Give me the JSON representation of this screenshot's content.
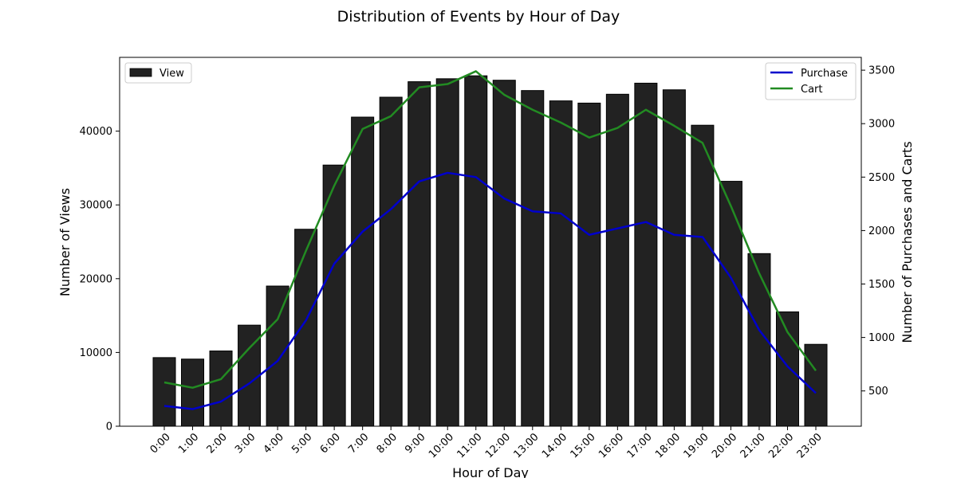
{
  "chart_data": {
    "type": "bar+line",
    "title": "Distribution of Events by Hour of Day",
    "xlabel": "Hour of Day",
    "ylabel_left": "Number of Views",
    "ylabel_right": "Number of Purchases and Carts",
    "categories": [
      "0:00",
      "1:00",
      "2:00",
      "3:00",
      "4:00",
      "5:00",
      "6:00",
      "7:00",
      "8:00",
      "9:00",
      "10:00",
      "11:00",
      "12:00",
      "13:00",
      "14:00",
      "15:00",
      "16:00",
      "17:00",
      "18:00",
      "19:00",
      "20:00",
      "21:00",
      "22:00",
      "23:00"
    ],
    "ylim_left": [
      0,
      50000
    ],
    "yticks_left": [
      0,
      10000,
      20000,
      30000,
      40000
    ],
    "ylim_right": [
      170,
      3620
    ],
    "yticks_right": [
      500,
      1000,
      1500,
      2000,
      2500,
      3000,
      3500
    ],
    "grid": false,
    "bar_series": [
      {
        "name": "View",
        "axis": "left",
        "color": "#222222",
        "values": [
          9300,
          9100,
          10200,
          13700,
          19000,
          26700,
          35400,
          41900,
          44600,
          46700,
          47100,
          47500,
          46900,
          45500,
          44100,
          43800,
          45000,
          46500,
          45600,
          40800,
          33200,
          23400,
          15500,
          11100
        ]
      }
    ],
    "line_series": [
      {
        "name": "Purchase",
        "axis": "right",
        "color": "#0000cc",
        "values": [
          360,
          330,
          400,
          570,
          780,
          1160,
          1690,
          1990,
          2200,
          2460,
          2540,
          2500,
          2300,
          2180,
          2160,
          1960,
          2020,
          2080,
          1960,
          1940,
          1560,
          1070,
          730,
          480
        ]
      },
      {
        "name": "Cart",
        "axis": "right",
        "color": "#228b22",
        "values": [
          580,
          530,
          610,
          900,
          1170,
          1810,
          2420,
          2950,
          3070,
          3340,
          3370,
          3490,
          3270,
          3130,
          3010,
          2870,
          2960,
          3130,
          2980,
          2820,
          2230,
          1600,
          1050,
          690
        ]
      }
    ],
    "legend_left": {
      "placement": "top-left",
      "entries": [
        "View"
      ]
    },
    "legend_right": {
      "placement": "top-right",
      "entries": [
        "Purchase",
        "Cart"
      ]
    }
  }
}
